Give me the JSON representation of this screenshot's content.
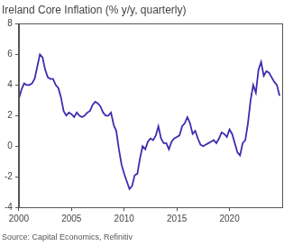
{
  "chart_data": {
    "type": "line",
    "title": "Ireland Core Inflation (% y/y, quarterly)",
    "source": "Source: Capital Economics, Refinitiv",
    "x": [
      2000,
      2000.25,
      2000.5,
      2000.75,
      2001,
      2001.25,
      2001.5,
      2001.75,
      2002,
      2002.25,
      2002.5,
      2002.75,
      2003,
      2003.25,
      2003.5,
      2003.75,
      2004,
      2004.25,
      2004.5,
      2004.75,
      2005,
      2005.25,
      2005.5,
      2005.75,
      2006,
      2006.25,
      2006.5,
      2006.75,
      2007,
      2007.25,
      2007.5,
      2007.75,
      2008,
      2008.25,
      2008.5,
      2008.75,
      2009,
      2009.25,
      2009.5,
      2009.75,
      2010,
      2010.25,
      2010.5,
      2010.75,
      2011,
      2011.25,
      2011.5,
      2011.75,
      2012,
      2012.25,
      2012.5,
      2012.75,
      2013,
      2013.25,
      2013.5,
      2013.75,
      2014,
      2014.25,
      2014.5,
      2014.75,
      2015,
      2015.25,
      2015.5,
      2015.75,
      2016,
      2016.25,
      2016.5,
      2016.75,
      2017,
      2017.25,
      2017.5,
      2017.75,
      2018,
      2018.25,
      2018.5,
      2018.75,
      2019,
      2019.25,
      2019.5,
      2019.75,
      2020,
      2020.25,
      2020.5,
      2020.75,
      2021,
      2021.25,
      2021.5,
      2021.75,
      2022,
      2022.25,
      2022.5,
      2022.75,
      2023,
      2023.25,
      2023.5,
      2023.75,
      2024,
      2024.25,
      2024.5,
      2024.75
    ],
    "values": [
      3.1,
      3.7,
      4.1,
      4.0,
      4.0,
      4.1,
      4.4,
      5.2,
      6.0,
      5.8,
      5.0,
      4.5,
      4.4,
      4.4,
      4.0,
      3.8,
      3.2,
      2.3,
      2.0,
      2.2,
      2.1,
      1.9,
      2.2,
      2.0,
      1.9,
      2.0,
      2.2,
      2.3,
      2.7,
      2.9,
      2.8,
      2.6,
      2.2,
      2.0,
      2.0,
      2.2,
      1.4,
      1.0,
      -0.2,
      -1.2,
      -1.8,
      -2.3,
      -2.8,
      -2.6,
      -1.9,
      -1.8,
      -0.8,
      0.0,
      -0.2,
      0.3,
      0.5,
      0.4,
      0.7,
      1.3,
      0.5,
      0.2,
      0.2,
      -0.2,
      0.3,
      0.5,
      0.6,
      0.7,
      1.3,
      1.5,
      1.9,
      1.5,
      0.8,
      1.0,
      0.5,
      0.1,
      0.0,
      0.1,
      0.2,
      0.3,
      0.4,
      0.2,
      0.5,
      0.9,
      0.8,
      0.6,
      1.1,
      0.8,
      0.2,
      -0.4,
      -0.6,
      0.2,
      0.4,
      1.5,
      3.0,
      4.0,
      3.5,
      5.0,
      5.5,
      4.6,
      4.9,
      4.8,
      4.5,
      4.2,
      4.0,
      3.3
    ],
    "color": "#3b2db0",
    "xlim": [
      2000,
      2025
    ],
    "xticks": [
      2000,
      2005,
      2010,
      2015,
      2020
    ],
    "ylim": [
      -4,
      8
    ],
    "yticks": [
      -4,
      -2,
      0,
      2,
      4,
      6,
      8
    ],
    "grid": false
  }
}
